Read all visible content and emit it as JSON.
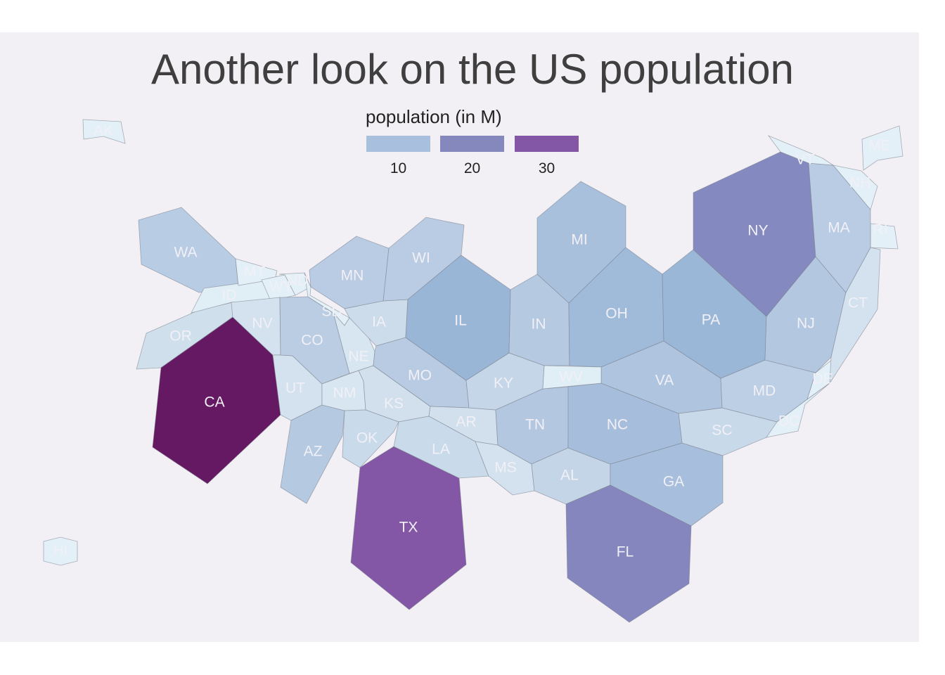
{
  "chart_data": {
    "type": "map",
    "title": "Another look on the US population",
    "legend": {
      "title": "population (in M)",
      "bins": [
        {
          "label": "10",
          "color": "#a8bfdd"
        },
        {
          "label": "20",
          "color": "#8588bd"
        },
        {
          "label": "30",
          "color": "#8357a5"
        }
      ]
    },
    "regions": [
      {
        "abbr": "AK",
        "fill": "#e4f0f7"
      },
      {
        "abbr": "HI",
        "fill": "#e4f0f7"
      },
      {
        "abbr": "WA",
        "fill": "#b8cce3"
      },
      {
        "abbr": "OR",
        "fill": "#cfdfeb"
      },
      {
        "abbr": "CA",
        "fill": "#661963"
      },
      {
        "abbr": "ID",
        "fill": "#e0eef5"
      },
      {
        "abbr": "MT",
        "fill": "#e4f0f7"
      },
      {
        "abbr": "WY",
        "fill": "#e4f0f7"
      },
      {
        "abbr": "NV",
        "fill": "#d3e2ee"
      },
      {
        "abbr": "UT",
        "fill": "#d3e2ee"
      },
      {
        "abbr": "CO",
        "fill": "#bacde3"
      },
      {
        "abbr": "AZ",
        "fill": "#b5c9e1"
      },
      {
        "abbr": "NM",
        "fill": "#d7e6f0"
      },
      {
        "abbr": "ND",
        "fill": "#e4f0f7"
      },
      {
        "abbr": "SD",
        "fill": "#e4f0f7"
      },
      {
        "abbr": "NE",
        "fill": "#d7e6f0"
      },
      {
        "abbr": "KS",
        "fill": "#d1e0ec"
      },
      {
        "abbr": "OK",
        "fill": "#c9dbea"
      },
      {
        "abbr": "TX",
        "fill": "#8357a5"
      },
      {
        "abbr": "MN",
        "fill": "#b9cce3"
      },
      {
        "abbr": "IA",
        "fill": "#ccdcea"
      },
      {
        "abbr": "MO",
        "fill": "#b8cbe2"
      },
      {
        "abbr": "AR",
        "fill": "#d1e0ec"
      },
      {
        "abbr": "LA",
        "fill": "#c9dbea"
      },
      {
        "abbr": "WI",
        "fill": "#b9cce3"
      },
      {
        "abbr": "IL",
        "fill": "#9ab6d6"
      },
      {
        "abbr": "MI",
        "fill": "#a8c0dc"
      },
      {
        "abbr": "IN",
        "fill": "#b5c9e1"
      },
      {
        "abbr": "OH",
        "fill": "#a0bbd9"
      },
      {
        "abbr": "KY",
        "fill": "#c4d6e7"
      },
      {
        "abbr": "TN",
        "fill": "#b3c8e0"
      },
      {
        "abbr": "MS",
        "fill": "#d3e2ee"
      },
      {
        "abbr": "AL",
        "fill": "#c3d5e7"
      },
      {
        "abbr": "GA",
        "fill": "#a7bfdc"
      },
      {
        "abbr": "FL",
        "fill": "#8586bd"
      },
      {
        "abbr": "SC",
        "fill": "#c8daea"
      },
      {
        "abbr": "NC",
        "fill": "#a6bedb"
      },
      {
        "abbr": "VA",
        "fill": "#afc5df"
      },
      {
        "abbr": "WV",
        "fill": "#e0eef5"
      },
      {
        "abbr": "MD",
        "fill": "#bccfe4"
      },
      {
        "abbr": "DE",
        "fill": "#e4f0f7"
      },
      {
        "abbr": "DC",
        "fill": "#e4f0f7"
      },
      {
        "abbr": "PA",
        "fill": "#9bb7d7"
      },
      {
        "abbr": "NJ",
        "fill": "#b3c8e0"
      },
      {
        "abbr": "NY",
        "fill": "#848abf"
      },
      {
        "abbr": "CT",
        "fill": "#d3e2ee"
      },
      {
        "abbr": "RI",
        "fill": "#e4f0f7"
      },
      {
        "abbr": "MA",
        "fill": "#b9cce3"
      },
      {
        "abbr": "VT",
        "fill": "#e4f0f7"
      },
      {
        "abbr": "NH",
        "fill": "#e4f0f7"
      },
      {
        "abbr": "ME",
        "fill": "#e4f0f7"
      }
    ]
  }
}
